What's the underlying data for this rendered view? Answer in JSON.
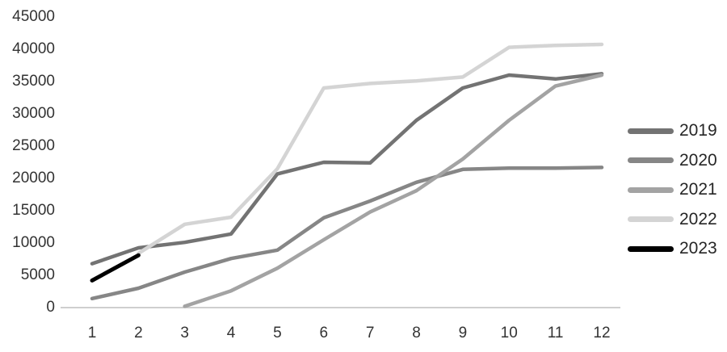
{
  "chart_data": {
    "type": "line",
    "title": "",
    "xlabel": "",
    "ylabel": "",
    "grid": false,
    "legend_position": "right",
    "axis_line_color": "#bfbfbf",
    "tick_label_color": "#333333",
    "x": [
      1,
      2,
      3,
      4,
      5,
      6,
      7,
      8,
      9,
      10,
      11,
      12
    ],
    "x_ticks": [
      "1",
      "2",
      "3",
      "4",
      "5",
      "6",
      "7",
      "8",
      "9",
      "10",
      "11",
      "12"
    ],
    "y_ticks": [
      "0",
      "5000",
      "10000",
      "15000",
      "20000",
      "25000",
      "30000",
      "35000",
      "40000",
      "45000"
    ],
    "ylim": [
      0,
      45000
    ],
    "series": [
      {
        "name": "2019",
        "color": "#737373",
        "values": [
          6800,
          9250,
          10100,
          11400,
          20700,
          22500,
          22400,
          29000,
          34000,
          36000,
          35400,
          36200
        ]
      },
      {
        "name": "2020",
        "color": "#868686",
        "values": [
          1400,
          3000,
          5500,
          7600,
          8900,
          13900,
          16500,
          19400,
          21400,
          21600,
          21600,
          21700
        ]
      },
      {
        "name": "2021",
        "color": "#a3a3a3",
        "values": [
          null,
          null,
          200,
          2600,
          6100,
          10500,
          14800,
          18100,
          23000,
          29000,
          34300,
          36000
        ]
      },
      {
        "name": "2022",
        "color": "#d4d4d4",
        "values": [
          null,
          8400,
          12900,
          14000,
          21500,
          34000,
          34700,
          35100,
          35700,
          40300,
          40600,
          40750
        ]
      },
      {
        "name": "2023",
        "color": "#000000",
        "values": [
          4200,
          8100,
          null,
          null,
          null,
          null,
          null,
          null,
          null,
          null,
          null,
          null
        ]
      }
    ]
  }
}
